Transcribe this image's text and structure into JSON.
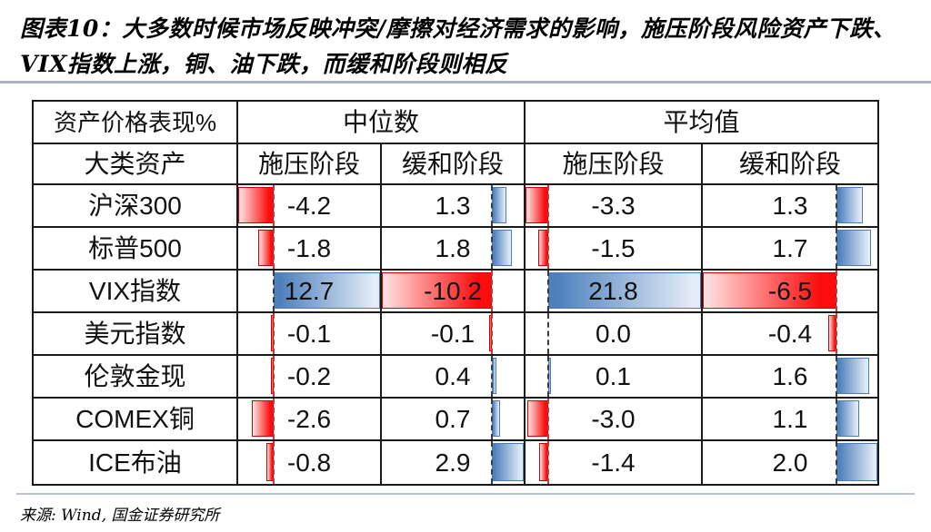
{
  "figure": {
    "title": "图表10：大多数时候市场反映冲突/摩擦对经济需求的影响，施压阶段风险资产下跌、VIX指数上涨，铜、油下跌，而缓和阶段则相反",
    "source": "来源: Wind, 国金证券研究所"
  },
  "chart_data": {
    "type": "table",
    "title": "资产价格表现%",
    "corner_header": "资产价格表现%",
    "row_header": "大类资产",
    "col_groups": [
      {
        "label": "中位数"
      },
      {
        "label": "平均值"
      }
    ],
    "sub_headers": [
      "施压阶段",
      "缓和阶段",
      "施压阶段",
      "缓和阶段"
    ],
    "rows": [
      {
        "label": "沪深300",
        "values": [
          -4.2,
          1.3,
          -3.3,
          1.3
        ]
      },
      {
        "label": "标普500",
        "values": [
          -1.8,
          1.8,
          -1.5,
          1.7
        ]
      },
      {
        "label": "VIX指数",
        "values": [
          12.7,
          -10.2,
          21.8,
          -6.5
        ]
      },
      {
        "label": "美元指数",
        "values": [
          -0.1,
          -0.1,
          0.0,
          -0.4
        ]
      },
      {
        "label": "伦敦金现",
        "values": [
          -0.2,
          0.4,
          0.1,
          1.6
        ]
      },
      {
        "label": "COMEX铜",
        "values": [
          -2.6,
          0.7,
          -3.0,
          1.1
        ]
      },
      {
        "label": "ICE布油",
        "values": [
          -0.8,
          2.9,
          -1.4,
          2.0
        ]
      }
    ],
    "value_format": "one_decimal_percent_points",
    "bar_style": {
      "negative_color": "#fb0d0d",
      "negative_tip": "#ffe4e4",
      "negative_border": "#cc0000",
      "positive_color": "#4e80bd",
      "positive_tip": "#e3ecf7",
      "positive_border": "#4a7ebb",
      "axis_negative": "#c03a3a",
      "axis_default": "#3c3c3c"
    },
    "layout_hints": {
      "bars_baseline": "per-column automatic axis (Excel data bars)",
      "negative_direction": "left",
      "positive_direction": "right"
    }
  }
}
